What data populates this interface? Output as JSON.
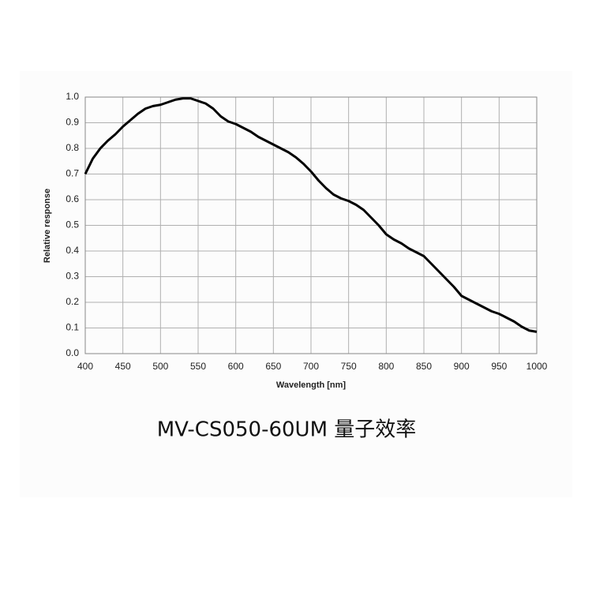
{
  "chart_data": {
    "type": "line",
    "title": "MV-CS050-60UM 量子效率",
    "x_label": "Wavelength [nm]",
    "y_label": "Relative response",
    "x": [
      400,
      410,
      420,
      430,
      440,
      450,
      460,
      470,
      480,
      490,
      500,
      510,
      520,
      530,
      540,
      550,
      560,
      570,
      580,
      590,
      600,
      610,
      620,
      630,
      640,
      650,
      660,
      670,
      680,
      690,
      700,
      710,
      720,
      730,
      740,
      750,
      760,
      770,
      780,
      790,
      800,
      810,
      820,
      830,
      840,
      850,
      860,
      870,
      880,
      890,
      900,
      910,
      920,
      930,
      940,
      950,
      960,
      970,
      980,
      990,
      1000
    ],
    "series": [
      {
        "name": "Relative response",
        "color": "#000000",
        "values": [
          0.7,
          0.76,
          0.8,
          0.83,
          0.855,
          0.885,
          0.91,
          0.935,
          0.955,
          0.965,
          0.97,
          0.98,
          0.99,
          0.995,
          0.995,
          0.985,
          0.975,
          0.955,
          0.925,
          0.905,
          0.895,
          0.88,
          0.865,
          0.845,
          0.83,
          0.815,
          0.8,
          0.785,
          0.765,
          0.74,
          0.71,
          0.675,
          0.645,
          0.62,
          0.605,
          0.595,
          0.58,
          0.56,
          0.53,
          0.5,
          0.465,
          0.445,
          0.43,
          0.41,
          0.395,
          0.38,
          0.35,
          0.32,
          0.29,
          0.26,
          0.225,
          0.21,
          0.195,
          0.18,
          0.165,
          0.155,
          0.14,
          0.125,
          0.105,
          0.09,
          0.085
        ]
      }
    ],
    "xlim": [
      400,
      1000
    ],
    "ylim": [
      0,
      1
    ],
    "xticks": [
      400,
      450,
      500,
      550,
      600,
      650,
      700,
      750,
      800,
      850,
      900,
      950,
      1000
    ],
    "yticks": [
      {
        "value": 0,
        "label": "0.0"
      },
      {
        "value": 0.1,
        "label": "0.1"
      },
      {
        "value": 0.2,
        "label": "0.2"
      },
      {
        "value": 0.3,
        "label": "0.3"
      },
      {
        "value": 0.4,
        "label": "0.4"
      },
      {
        "value": 0.5,
        "label": "0.5"
      },
      {
        "value": 0.6,
        "label": "0.6"
      },
      {
        "value": 0.7,
        "label": "0.7"
      },
      {
        "value": 0.8,
        "label": "0.8"
      },
      {
        "value": 0.9,
        "label": "0.9"
      },
      {
        "value": 1,
        "label": "1.0"
      }
    ],
    "grid": true
  }
}
